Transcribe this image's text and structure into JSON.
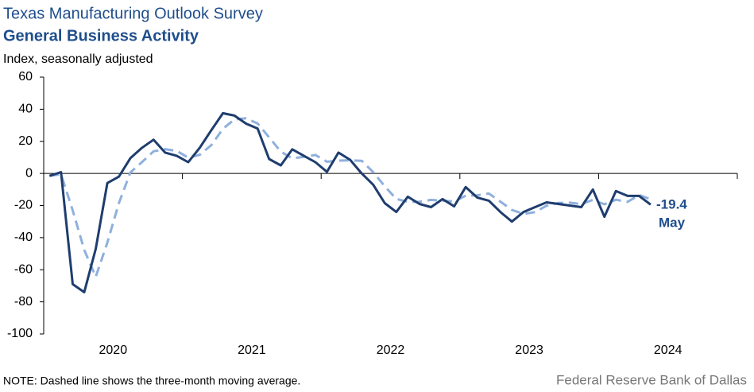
{
  "chart_data": {
    "type": "line",
    "title": "Texas Manufacturing Outlook Survey",
    "subtitle": "General Business Activity",
    "y_label": "Index, seasonally adjusted",
    "note": "NOTE: Dashed line shows the three-month  moving average.",
    "source": "Federal Reserve Bank of Dallas",
    "annotations": [
      "-19.4",
      "May"
    ],
    "x": [
      2020,
      2020.083,
      2020.167,
      2020.25,
      2020.333,
      2020.417,
      2020.5,
      2020.583,
      2020.667,
      2020.75,
      2020.833,
      2020.917,
      2021,
      2021.083,
      2021.167,
      2021.25,
      2021.333,
      2021.417,
      2021.5,
      2021.583,
      2021.667,
      2021.75,
      2021.833,
      2021.917,
      2022,
      2022.083,
      2022.167,
      2022.25,
      2022.333,
      2022.417,
      2022.5,
      2022.583,
      2022.667,
      2022.75,
      2022.833,
      2022.917,
      2023,
      2023.083,
      2023.167,
      2023.25,
      2023.333,
      2023.417,
      2023.5,
      2023.583,
      2023.667,
      2023.75,
      2023.833,
      2023.917,
      2024,
      2024.083,
      2024.167,
      2024.25,
      2024.333
    ],
    "series": [
      {
        "color": "#1f3d6e",
        "dashed": false,
        "values": [
          -1.5,
          0.8,
          -69,
          -74,
          -47,
          -6,
          -2,
          9.5,
          16,
          21,
          13,
          11,
          7,
          16,
          27,
          37.5,
          36,
          31,
          28,
          9,
          5,
          15,
          11,
          7,
          1,
          13,
          8.5,
          0,
          -7,
          -18.5,
          -24,
          -14.5,
          -19,
          -21,
          -16,
          -20.5,
          -8.5,
          -15,
          -17,
          -24,
          -30,
          -24,
          -21,
          -18,
          -19,
          -20,
          -21,
          -10,
          -27,
          -11,
          -14,
          -14,
          -19.4
        ]
      },
      {
        "color": "#8fb0dd",
        "dashed": true,
        "values": [
          -1.5,
          -0.5,
          -23,
          -47.6,
          -64.4,
          -43.1,
          -18.5,
          0.6,
          7.1,
          13.8,
          15.1,
          14.1,
          9.8,
          11.6,
          17.7,
          27.8,
          33.7,
          34.4,
          31.1,
          22.5,
          13.6,
          9.4,
          10.3,
          11.5,
          7.3,
          8.0,
          8.2,
          7.9,
          0.8,
          -8.0,
          -15.9,
          -17.7,
          -17.6,
          -16.5,
          -17.0,
          -17.5,
          -13.9,
          -13.6,
          -12.5,
          -17.5,
          -22.7,
          -25.2,
          -24.1,
          -20.1,
          -18.4,
          -18.2,
          -19.1,
          -16.5,
          -19.2,
          -16.4,
          -17.7,
          -13.4,
          -16.1
        ]
      }
    ],
    "xlim": [
      2019.958,
      2024.958
    ],
    "xticks": [
      {
        "value": 2020.458,
        "label": "2020"
      },
      {
        "value": 2021.458,
        "label": "2021"
      },
      {
        "value": 2022.458,
        "label": "2022"
      },
      {
        "value": 2023.458,
        "label": "2023"
      },
      {
        "value": 2024.458,
        "label": "2024"
      }
    ],
    "ylim": [
      -100,
      60
    ],
    "yticks": [
      -100,
      -80,
      -60,
      -40,
      -20,
      0,
      20,
      40,
      60
    ],
    "grid": false
  }
}
